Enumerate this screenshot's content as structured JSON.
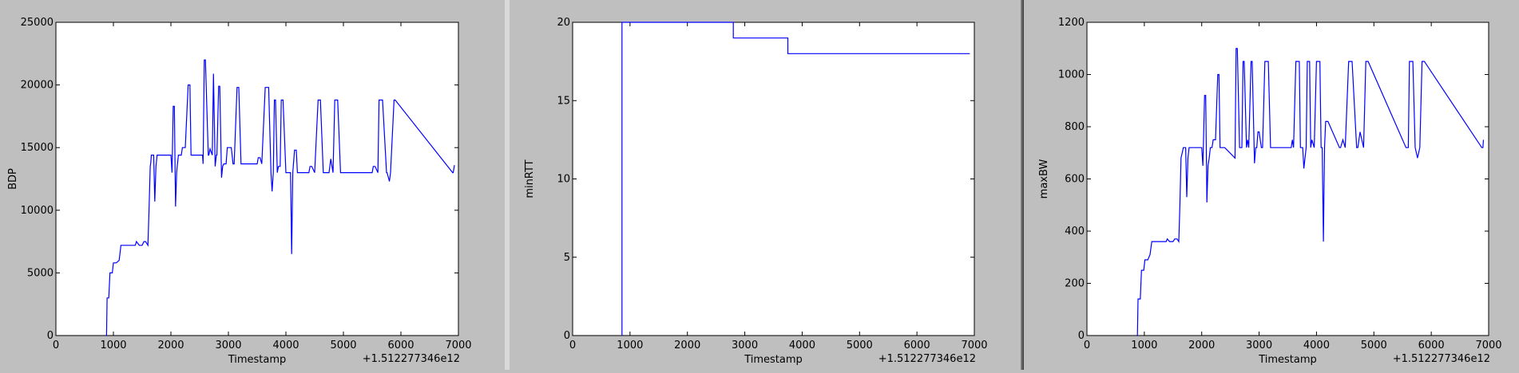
{
  "chart_data": [
    {
      "type": "line",
      "xlabel": "Timestamp",
      "ylabel": "BDP",
      "offset_label": "+1.512277346e12",
      "xlim": [
        0,
        7000
      ],
      "ylim": [
        0,
        25000
      ],
      "x_ticks": [
        0,
        1000,
        2000,
        3000,
        4000,
        5000,
        6000,
        7000
      ],
      "y_ticks": [
        0,
        5000,
        10000,
        15000,
        20000,
        25000
      ],
      "grid": false,
      "color": "#0000ff",
      "series": [
        {
          "x": [
            870,
            880,
            890,
            920,
            940,
            980,
            1000,
            1050,
            1100,
            1130,
            1150,
            1380,
            1400,
            1450,
            1500,
            1530,
            1560,
            1600,
            1620,
            1640,
            1650,
            1660,
            1700,
            1720,
            1740,
            1760,
            1780,
            1800,
            2000,
            2020,
            2040,
            2060,
            2080,
            2100,
            2110,
            2130,
            2150,
            2180,
            2200,
            2250,
            2300,
            2330,
            2350,
            2380,
            2400,
            2550,
            2560,
            2580,
            2600,
            2650,
            2660,
            2680,
            2720,
            2740,
            2770,
            2790,
            2800,
            2830,
            2850,
            2880,
            2900,
            2920,
            2960,
            2980,
            3050,
            3080,
            3100,
            3150,
            3180,
            3220,
            3250,
            3500,
            3520,
            3550,
            3580,
            3640,
            3700,
            3740,
            3760,
            3780,
            3800,
            3820,
            3850,
            3870,
            3900,
            3920,
            3950,
            4000,
            4050,
            4080,
            4100,
            4120,
            4150,
            4180,
            4200,
            4400,
            4420,
            4450,
            4500,
            4560,
            4600,
            4650,
            4750,
            4780,
            4820,
            4850,
            4900,
            4950,
            5500,
            5520,
            5550,
            5600,
            5620,
            5680,
            5750,
            5760,
            5800,
            5820,
            5880,
            5900,
            6900,
            6910,
            6930
          ],
          "values": [
            0,
            0,
            3000,
            3000,
            5000,
            5000,
            5800,
            5800,
            6000,
            7200,
            7200,
            7200,
            7500,
            7200,
            7200,
            7500,
            7500,
            7200,
            10000,
            13500,
            13800,
            14400,
            14400,
            10700,
            13500,
            14400,
            14400,
            14400,
            14400,
            13000,
            18300,
            18300,
            10300,
            13000,
            13500,
            14400,
            14400,
            14400,
            15000,
            15000,
            20000,
            20000,
            14400,
            14400,
            14400,
            14400,
            13700,
            22000,
            22000,
            14400,
            14400,
            14900,
            14400,
            20900,
            13500,
            14400,
            14400,
            19900,
            19900,
            12600,
            13500,
            13700,
            13700,
            15000,
            15000,
            13700,
            13700,
            19800,
            19800,
            13700,
            13700,
            13700,
            14200,
            14200,
            13700,
            19800,
            19800,
            13000,
            11500,
            13000,
            18800,
            18800,
            13000,
            13500,
            13500,
            18800,
            18800,
            13000,
            13000,
            13000,
            6500,
            13000,
            14800,
            14800,
            13000,
            13000,
            13500,
            13500,
            13000,
            18800,
            18800,
            13000,
            13000,
            14100,
            13000,
            18800,
            18800,
            13000,
            13000,
            13500,
            13500,
            13000,
            18800,
            18800,
            13000,
            13000,
            12300,
            13000,
            18800,
            18800,
            13000,
            13000,
            13600
          ]
        }
      ]
    },
    {
      "type": "line",
      "xlabel": "Timestamp",
      "ylabel": "minRTT",
      "offset_label": "+1.512277346e12",
      "xlim": [
        0,
        7000
      ],
      "ylim": [
        0,
        20
      ],
      "x_ticks": [
        0,
        1000,
        2000,
        3000,
        4000,
        5000,
        6000,
        7000
      ],
      "y_ticks": [
        0,
        5,
        10,
        15,
        20
      ],
      "grid": false,
      "color": "#0000ff",
      "series": [
        {
          "x": [
            860,
            860,
            2800,
            2800,
            3750,
            3750,
            6920
          ],
          "values": [
            0,
            20,
            20,
            19,
            19,
            18,
            18
          ]
        }
      ]
    },
    {
      "type": "line",
      "xlabel": "Timestamp",
      "ylabel": "maxBW",
      "offset_label": "+1.512277346e12",
      "xlim": [
        0,
        7000
      ],
      "ylim": [
        0,
        1200
      ],
      "x_ticks": [
        0,
        1000,
        2000,
        3000,
        4000,
        5000,
        6000,
        7000
      ],
      "y_ticks": [
        0,
        200,
        400,
        600,
        800,
        1000,
        1200
      ],
      "grid": false,
      "color": "#0000ff",
      "series": [
        {
          "x": [
            870,
            880,
            890,
            930,
            950,
            990,
            1010,
            1060,
            1100,
            1130,
            1150,
            1380,
            1400,
            1440,
            1500,
            1530,
            1570,
            1600,
            1620,
            1640,
            1660,
            1680,
            1720,
            1740,
            1760,
            1780,
            2000,
            2020,
            2050,
            2070,
            2090,
            2110,
            2130,
            2150,
            2180,
            2200,
            2240,
            2280,
            2300,
            2320,
            2340,
            2380,
            2400,
            2580,
            2600,
            2620,
            2660,
            2700,
            2720,
            2740,
            2780,
            2800,
            2820,
            2860,
            2880,
            2920,
            2940,
            2960,
            2980,
            3000,
            3040,
            3060,
            3100,
            3160,
            3200,
            3560,
            3580,
            3600,
            3640,
            3700,
            3720,
            3760,
            3780,
            3820,
            3840,
            3880,
            3900,
            3920,
            3960,
            4000,
            4060,
            4080,
            4100,
            4120,
            4140,
            4160,
            4200,
            4400,
            4420,
            4460,
            4500,
            4560,
            4620,
            4700,
            4720,
            4760,
            4820,
            4860,
            4900,
            5560,
            5600,
            5620,
            5680,
            5720,
            5760,
            5800,
            5840,
            5880,
            6880,
            6900,
            6910
          ],
          "values": [
            0,
            0,
            140,
            140,
            250,
            250,
            290,
            290,
            310,
            360,
            360,
            360,
            370,
            360,
            360,
            370,
            370,
            360,
            500,
            680,
            700,
            720,
            720,
            530,
            680,
            720,
            720,
            650,
            920,
            920,
            510,
            650,
            680,
            720,
            720,
            750,
            750,
            1000,
            1000,
            720,
            720,
            720,
            720,
            680,
            1100,
            1100,
            720,
            720,
            1050,
            1050,
            720,
            750,
            720,
            1050,
            1050,
            660,
            720,
            720,
            780,
            780,
            720,
            720,
            1050,
            1050,
            720,
            720,
            750,
            720,
            1050,
            1050,
            720,
            720,
            640,
            720,
            1050,
            1050,
            720,
            750,
            720,
            1050,
            1050,
            720,
            720,
            360,
            720,
            820,
            820,
            720,
            720,
            750,
            720,
            1050,
            1050,
            720,
            720,
            780,
            720,
            1050,
            1050,
            720,
            720,
            1050,
            1050,
            720,
            680,
            720,
            1050,
            1050,
            720,
            720,
            750
          ]
        }
      ]
    }
  ]
}
